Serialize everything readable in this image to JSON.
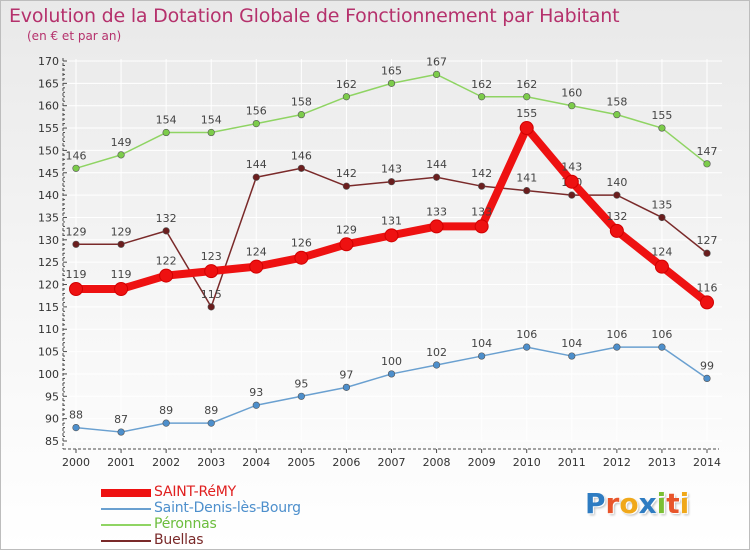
{
  "title": "Evolution de la Dotation Globale de Fonctionnement par Habitant",
  "subtitle": "(en € et par an)",
  "logo": {
    "text": "Proxiti",
    "letter_colors": [
      "#2e7cc2",
      "#e8552b",
      "#f0a81a",
      "#2e7cc2",
      "#7cbf34",
      "#e8552b",
      "#f0a81a"
    ]
  },
  "colors": {
    "title": "#b5316c",
    "axis": "#4a4a4a",
    "label": "#444444"
  },
  "chart_data": {
    "type": "line",
    "title": "Evolution de la Dotation Globale de Fonctionnement par Habitant",
    "subtitle": "(en € et par an)",
    "xlabel": "",
    "ylabel": "",
    "ylim": [
      85,
      170
    ],
    "yticks": [
      85,
      90,
      95,
      100,
      105,
      110,
      115,
      120,
      125,
      130,
      135,
      140,
      145,
      150,
      155,
      160,
      165,
      170
    ],
    "categories": [
      "2000",
      "2001",
      "2002",
      "2003",
      "2004",
      "2005",
      "2006",
      "2007",
      "2008",
      "2009",
      "2010",
      "2011",
      "2012",
      "2013",
      "2014"
    ],
    "grid": true,
    "legend": "bottom-left",
    "series": [
      {
        "name": "Péronnas",
        "color": "#8fd463",
        "marker_color": "#7ccc4a",
        "emphasis": false,
        "values": [
          146,
          149,
          154,
          154,
          156,
          158,
          162,
          165,
          167,
          162,
          162,
          160,
          158,
          155,
          147
        ]
      },
      {
        "name": "Buellas",
        "color": "#7a2a2a",
        "marker_color": "#6b1e1e",
        "emphasis": false,
        "values": [
          129,
          129,
          132,
          115,
          144,
          146,
          142,
          143,
          144,
          142,
          141,
          140,
          140,
          135,
          127
        ]
      },
      {
        "name": "Saint-Denis-lès-Bourg",
        "color": "#6aa0d0",
        "marker_color": "#4d8fcc",
        "emphasis": false,
        "values": [
          88,
          87,
          89,
          89,
          93,
          95,
          97,
          100,
          102,
          104,
          106,
          104,
          106,
          106,
          99
        ]
      },
      {
        "name": "SAINT-RéMY",
        "color": "#ee1111",
        "marker_color": "#ee1111",
        "emphasis": true,
        "values": [
          119,
          119,
          122,
          123,
          124,
          126,
          129,
          131,
          133,
          133,
          155,
          143,
          132,
          124,
          116
        ]
      }
    ]
  },
  "legend_order": [
    "SAINT-RéMY",
    "Saint-Denis-lès-Bourg",
    "Péronnas",
    "Buellas"
  ]
}
